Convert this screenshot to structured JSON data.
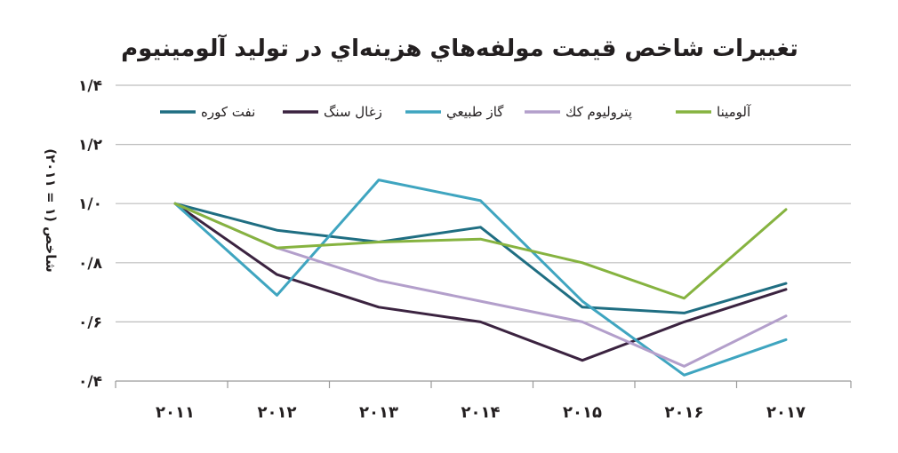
{
  "chart_data": {
    "type": "line",
    "title": "تغييرات شاخص قيمت مولفه‌هاي هزينه‌اي در توليد آلومينيوم",
    "ylabel": "شاخص (۱ = ۲۰۱۱)",
    "xlabel": "",
    "categories": [
      "۲۰۱۱",
      "۲۰۱۲",
      "۲۰۱۳",
      "۲۰۱۴",
      "۲۰۱۵",
      "۲۰۱۶",
      "۲۰۱۷"
    ],
    "ylim": [
      0.4,
      1.4
    ],
    "yticks": [
      0.4,
      0.6,
      0.8,
      1.0,
      1.2,
      1.4
    ],
    "ytick_labels": [
      "۰/۴",
      "۰/۶",
      "۰/۸",
      "۱/۰",
      "۱/۲",
      "۱/۴"
    ],
    "grid": true,
    "legend_position": "top",
    "series": [
      {
        "name": "نفت كوره",
        "color": "#1f6e82",
        "values": [
          1.0,
          0.91,
          0.87,
          0.92,
          0.65,
          0.63,
          0.73
        ]
      },
      {
        "name": "زغال سنگ",
        "color": "#3b2340",
        "values": [
          1.0,
          0.76,
          0.65,
          0.6,
          0.47,
          0.6,
          0.71
        ]
      },
      {
        "name": "گاز طبيعي",
        "color": "#3fa5c0",
        "values": [
          1.0,
          0.69,
          1.08,
          1.01,
          0.67,
          0.42,
          0.54
        ]
      },
      {
        "name": "پترولیوم كك",
        "color": "#b39fcb",
        "values": [
          1.0,
          0.85,
          0.74,
          0.67,
          0.6,
          0.45,
          0.62
        ]
      },
      {
        "name": "آلومينا",
        "color": "#86b340",
        "values": [
          1.0,
          0.85,
          0.87,
          0.88,
          0.8,
          0.68,
          0.98
        ]
      }
    ]
  }
}
